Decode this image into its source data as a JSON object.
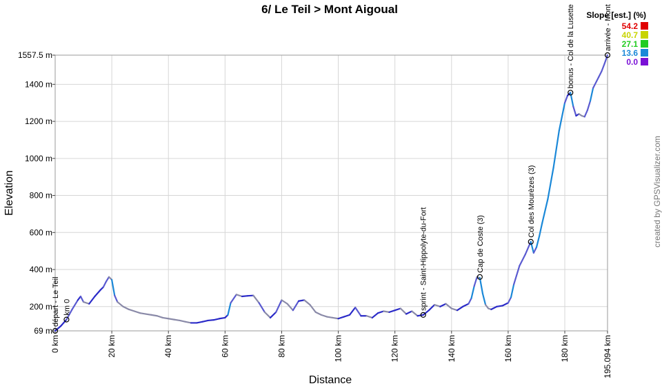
{
  "chart_data": {
    "type": "line",
    "title": "6/ Le Teil > Mont Aigoual",
    "xlabel": "Distance",
    "ylabel": "Elevation",
    "watermark": "created by GPSVisualizer.com",
    "xlim": [
      0,
      195.094
    ],
    "ylim": [
      69,
      1557.5
    ],
    "x_ticks": [
      {
        "value": 0,
        "label": "0 km"
      },
      {
        "value": 20,
        "label": "20 km"
      },
      {
        "value": 40,
        "label": "40 km"
      },
      {
        "value": 60,
        "label": "60 km"
      },
      {
        "value": 80,
        "label": "80 km"
      },
      {
        "value": 100,
        "label": "100 km"
      },
      {
        "value": 120,
        "label": "120 km"
      },
      {
        "value": 140,
        "label": "140 km"
      },
      {
        "value": 160,
        "label": "160 km"
      },
      {
        "value": 180,
        "label": "180 km"
      },
      {
        "value": 195.094,
        "label": "195.094 km"
      }
    ],
    "y_ticks": [
      {
        "value": 69,
        "label": "69 m"
      },
      {
        "value": 200,
        "label": "200 m"
      },
      {
        "value": 400,
        "label": "400 m"
      },
      {
        "value": 600,
        "label": "600 m"
      },
      {
        "value": 800,
        "label": "800 m"
      },
      {
        "value": 1000,
        "label": "1000 m"
      },
      {
        "value": 1200,
        "label": "1200 m"
      },
      {
        "value": 1400,
        "label": "1400 m"
      },
      {
        "value": 1557.5,
        "label": "1557.5 m"
      }
    ],
    "grid": true,
    "legend_position": "top-right",
    "legend": {
      "title": "Slope [est.] (%)",
      "entries": [
        {
          "label": "54.2",
          "color": "#e00000"
        },
        {
          "label": "40.7",
          "color": "#c8d400"
        },
        {
          "label": "27.1",
          "color": "#22cc22"
        },
        {
          "label": "13.6",
          "color": "#1a88d8"
        },
        {
          "label": "0.0",
          "color": "#7a10d6"
        }
      ]
    },
    "series": [
      {
        "x": [
          0,
          2,
          4,
          6,
          8,
          9,
          10,
          12,
          14,
          16,
          17,
          18,
          19,
          20,
          21,
          22,
          24,
          26,
          28,
          30,
          32,
          34,
          36,
          38,
          40,
          42,
          44,
          46,
          48,
          50,
          52,
          54,
          56,
          58,
          60,
          61,
          62,
          64,
          66,
          68,
          70,
          72,
          74,
          76,
          78,
          80,
          82,
          84,
          86,
          88,
          90,
          92,
          94,
          96,
          98,
          100,
          102,
          104,
          106,
          108,
          110,
          112,
          114,
          116,
          118,
          120,
          122,
          124,
          126,
          128,
          130,
          132,
          134,
          136,
          138,
          140,
          142,
          144,
          146,
          147,
          148,
          149,
          150,
          151,
          152,
          153,
          154,
          156,
          158,
          160,
          161,
          162,
          164,
          166,
          168,
          169,
          170,
          171,
          172,
          174,
          176,
          178,
          180,
          181,
          182,
          183,
          184,
          185,
          186,
          187,
          188,
          189,
          190,
          192,
          193,
          194,
          195.094
        ],
        "y": [
          69,
          95,
          130,
          185,
          235,
          255,
          225,
          215,
          255,
          290,
          305,
          335,
          360,
          345,
          260,
          225,
          200,
          185,
          175,
          165,
          160,
          155,
          150,
          140,
          135,
          130,
          125,
          118,
          112,
          112,
          118,
          125,
          128,
          135,
          140,
          155,
          220,
          265,
          255,
          258,
          260,
          220,
          170,
          140,
          170,
          235,
          215,
          180,
          230,
          235,
          210,
          170,
          155,
          145,
          140,
          135,
          145,
          155,
          195,
          150,
          150,
          140,
          165,
          175,
          170,
          180,
          190,
          160,
          175,
          150,
          155,
          180,
          210,
          200,
          215,
          190,
          180,
          200,
          215,
          245,
          310,
          360,
          355,
          270,
          210,
          190,
          185,
          200,
          205,
          220,
          250,
          320,
          420,
          480,
          550,
          490,
          520,
          580,
          650,
          780,
          950,
          1150,
          1300,
          1340,
          1355,
          1280,
          1230,
          1240,
          1230,
          1225,
          1260,
          1310,
          1380,
          1440,
          1470,
          1510,
          1557.5
        ]
      }
    ],
    "annotations": [
      {
        "x": 0,
        "y": 69,
        "label": "départ - Le Teil"
      },
      {
        "x": 4,
        "y": 130,
        "label": "km 0"
      },
      {
        "x": 130,
        "y": 155,
        "label": "sprint - Saint-Hippolyte-du-Fort"
      },
      {
        "x": 150,
        "y": 360,
        "label": "Cap de Coste (3)"
      },
      {
        "x": 168,
        "y": 550,
        "label": "Col des Mourèzes (3)"
      },
      {
        "x": 182,
        "y": 1355,
        "label": "bonus - Col de la Lusette"
      },
      {
        "x": 195.094,
        "y": 1557.5,
        "label": "arrivée - Mont"
      }
    ]
  }
}
